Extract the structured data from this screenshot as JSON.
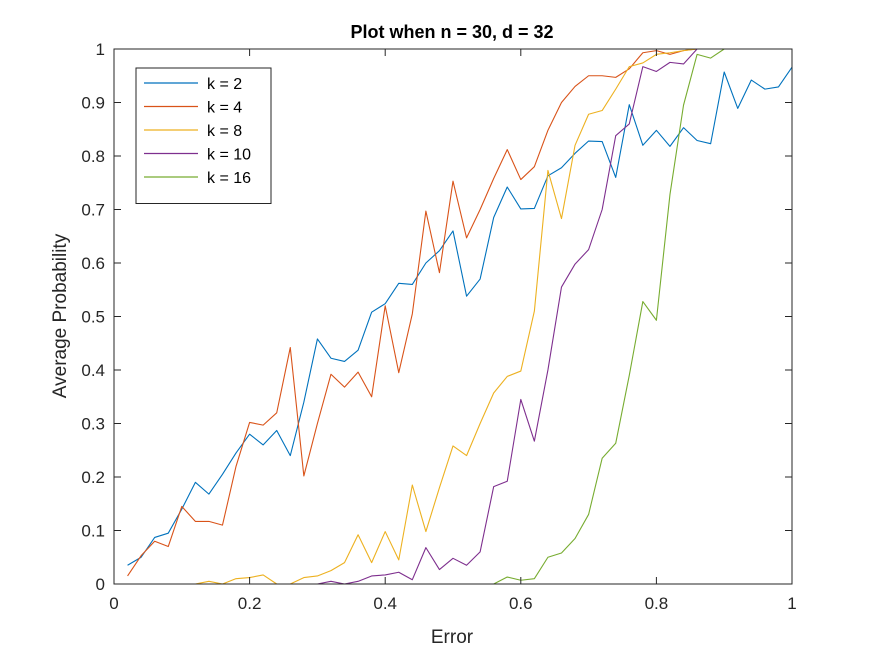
{
  "chart_data": {
    "type": "line",
    "title": "Plot when n = 30, d = 32",
    "xlabel": "Error",
    "ylabel": "Average Probability",
    "xlim": [
      0,
      1
    ],
    "ylim": [
      0,
      1
    ],
    "xticks": [
      0,
      0.2,
      0.4,
      0.6,
      0.8,
      1
    ],
    "xtick_labels": [
      "0",
      "0.2",
      "0.4",
      "0.6",
      "0.8",
      "1"
    ],
    "yticks": [
      0,
      0.1,
      0.2,
      0.3,
      0.4,
      0.5,
      0.6,
      0.7,
      0.8,
      0.9,
      1
    ],
    "ytick_labels": [
      "0",
      "0.1",
      "0.2",
      "0.3",
      "0.4",
      "0.5",
      "0.6",
      "0.7",
      "0.8",
      "0.9",
      "1"
    ],
    "grid": false,
    "legend_position": "top-left",
    "x": [
      0.02,
      0.04,
      0.06,
      0.08,
      0.1,
      0.12,
      0.14,
      0.16,
      0.18,
      0.2,
      0.22,
      0.24,
      0.26,
      0.28,
      0.3,
      0.32,
      0.34,
      0.36,
      0.38,
      0.4,
      0.42,
      0.44,
      0.46,
      0.48,
      0.5,
      0.52,
      0.54,
      0.56,
      0.58,
      0.6,
      0.62,
      0.64,
      0.66,
      0.68,
      0.7,
      0.72,
      0.74,
      0.76,
      0.78,
      0.8,
      0.82,
      0.84,
      0.86,
      0.88,
      0.9,
      0.92,
      0.94,
      0.96,
      0.98,
      1.0
    ],
    "series": [
      {
        "name": "k = 2",
        "color": "#0072BD",
        "values": [
          0.035,
          0.05,
          0.087,
          0.095,
          0.14,
          0.19,
          0.168,
          0.205,
          0.245,
          0.28,
          0.26,
          0.287,
          0.24,
          0.34,
          0.458,
          0.422,
          0.416,
          0.437,
          0.508,
          0.524,
          0.562,
          0.56,
          0.6,
          0.623,
          0.66,
          0.538,
          0.57,
          0.685,
          0.742,
          0.701,
          0.702,
          0.763,
          0.778,
          0.805,
          0.828,
          0.827,
          0.76,
          0.896,
          0.82,
          0.848,
          0.818,
          0.853,
          0.829,
          0.823,
          0.957,
          0.889,
          0.942,
          0.925,
          0.929,
          0.966
        ]
      },
      {
        "name": "k = 4",
        "color": "#D95319",
        "values": [
          0.015,
          0.053,
          0.08,
          0.07,
          0.145,
          0.117,
          0.117,
          0.11,
          0.22,
          0.302,
          0.297,
          0.32,
          0.442,
          0.202,
          0.3,
          0.392,
          0.368,
          0.396,
          0.35,
          0.52,
          0.395,
          0.505,
          0.697,
          0.582,
          0.753,
          0.647,
          0.7,
          0.758,
          0.812,
          0.756,
          0.78,
          0.848,
          0.9,
          0.93,
          0.95,
          0.95,
          0.947,
          0.963,
          0.993,
          0.997,
          0.99,
          0.997,
          1.0,
          1.0,
          1.0,
          1.0,
          1.0,
          1.0,
          1.0,
          1.0
        ]
      },
      {
        "name": "k = 8",
        "color": "#EDB120",
        "values": [
          0,
          0,
          0,
          0,
          0,
          0,
          0.005,
          0,
          0.01,
          0.012,
          0.017,
          0,
          0,
          0.012,
          0.015,
          0.025,
          0.04,
          0.092,
          0.04,
          0.098,
          0.045,
          0.185,
          0.098,
          0.18,
          0.258,
          0.24,
          0.3,
          0.357,
          0.388,
          0.398,
          0.51,
          0.773,
          0.683,
          0.82,
          0.878,
          0.885,
          0.925,
          0.967,
          0.974,
          0.99,
          0.993,
          0.997,
          1.0,
          1.0,
          1.0,
          1.0,
          1.0,
          1.0,
          1.0,
          1.0
        ]
      },
      {
        "name": "k = 10",
        "color": "#7E2F8E",
        "values": [
          0,
          0,
          0,
          0,
          0,
          0,
          0,
          0,
          0,
          0,
          0,
          0,
          0,
          0,
          0,
          0.005,
          0,
          0.005,
          0.015,
          0.017,
          0.022,
          0.008,
          0.068,
          0.027,
          0.048,
          0.035,
          0.06,
          0.182,
          0.192,
          0.345,
          0.267,
          0.4,
          0.555,
          0.598,
          0.625,
          0.7,
          0.838,
          0.86,
          0.967,
          0.958,
          0.975,
          0.972,
          1.0,
          1.0,
          1.0,
          1.0,
          1.0,
          1.0,
          1.0,
          1.0
        ]
      },
      {
        "name": "k = 16",
        "color": "#77AC30",
        "values": [
          0,
          0,
          0,
          0,
          0,
          0,
          0,
          0,
          0,
          0,
          0,
          0,
          0,
          0,
          0,
          0,
          0,
          0,
          0,
          0,
          0,
          0,
          0,
          0,
          0,
          0,
          0,
          0,
          0.013,
          0.007,
          0.01,
          0.05,
          0.058,
          0.085,
          0.13,
          0.235,
          0.263,
          0.39,
          0.528,
          0.493,
          0.728,
          0.895,
          0.99,
          0.983,
          1.0,
          1.0,
          1.0,
          1.0,
          1.0,
          1.0
        ]
      }
    ]
  }
}
